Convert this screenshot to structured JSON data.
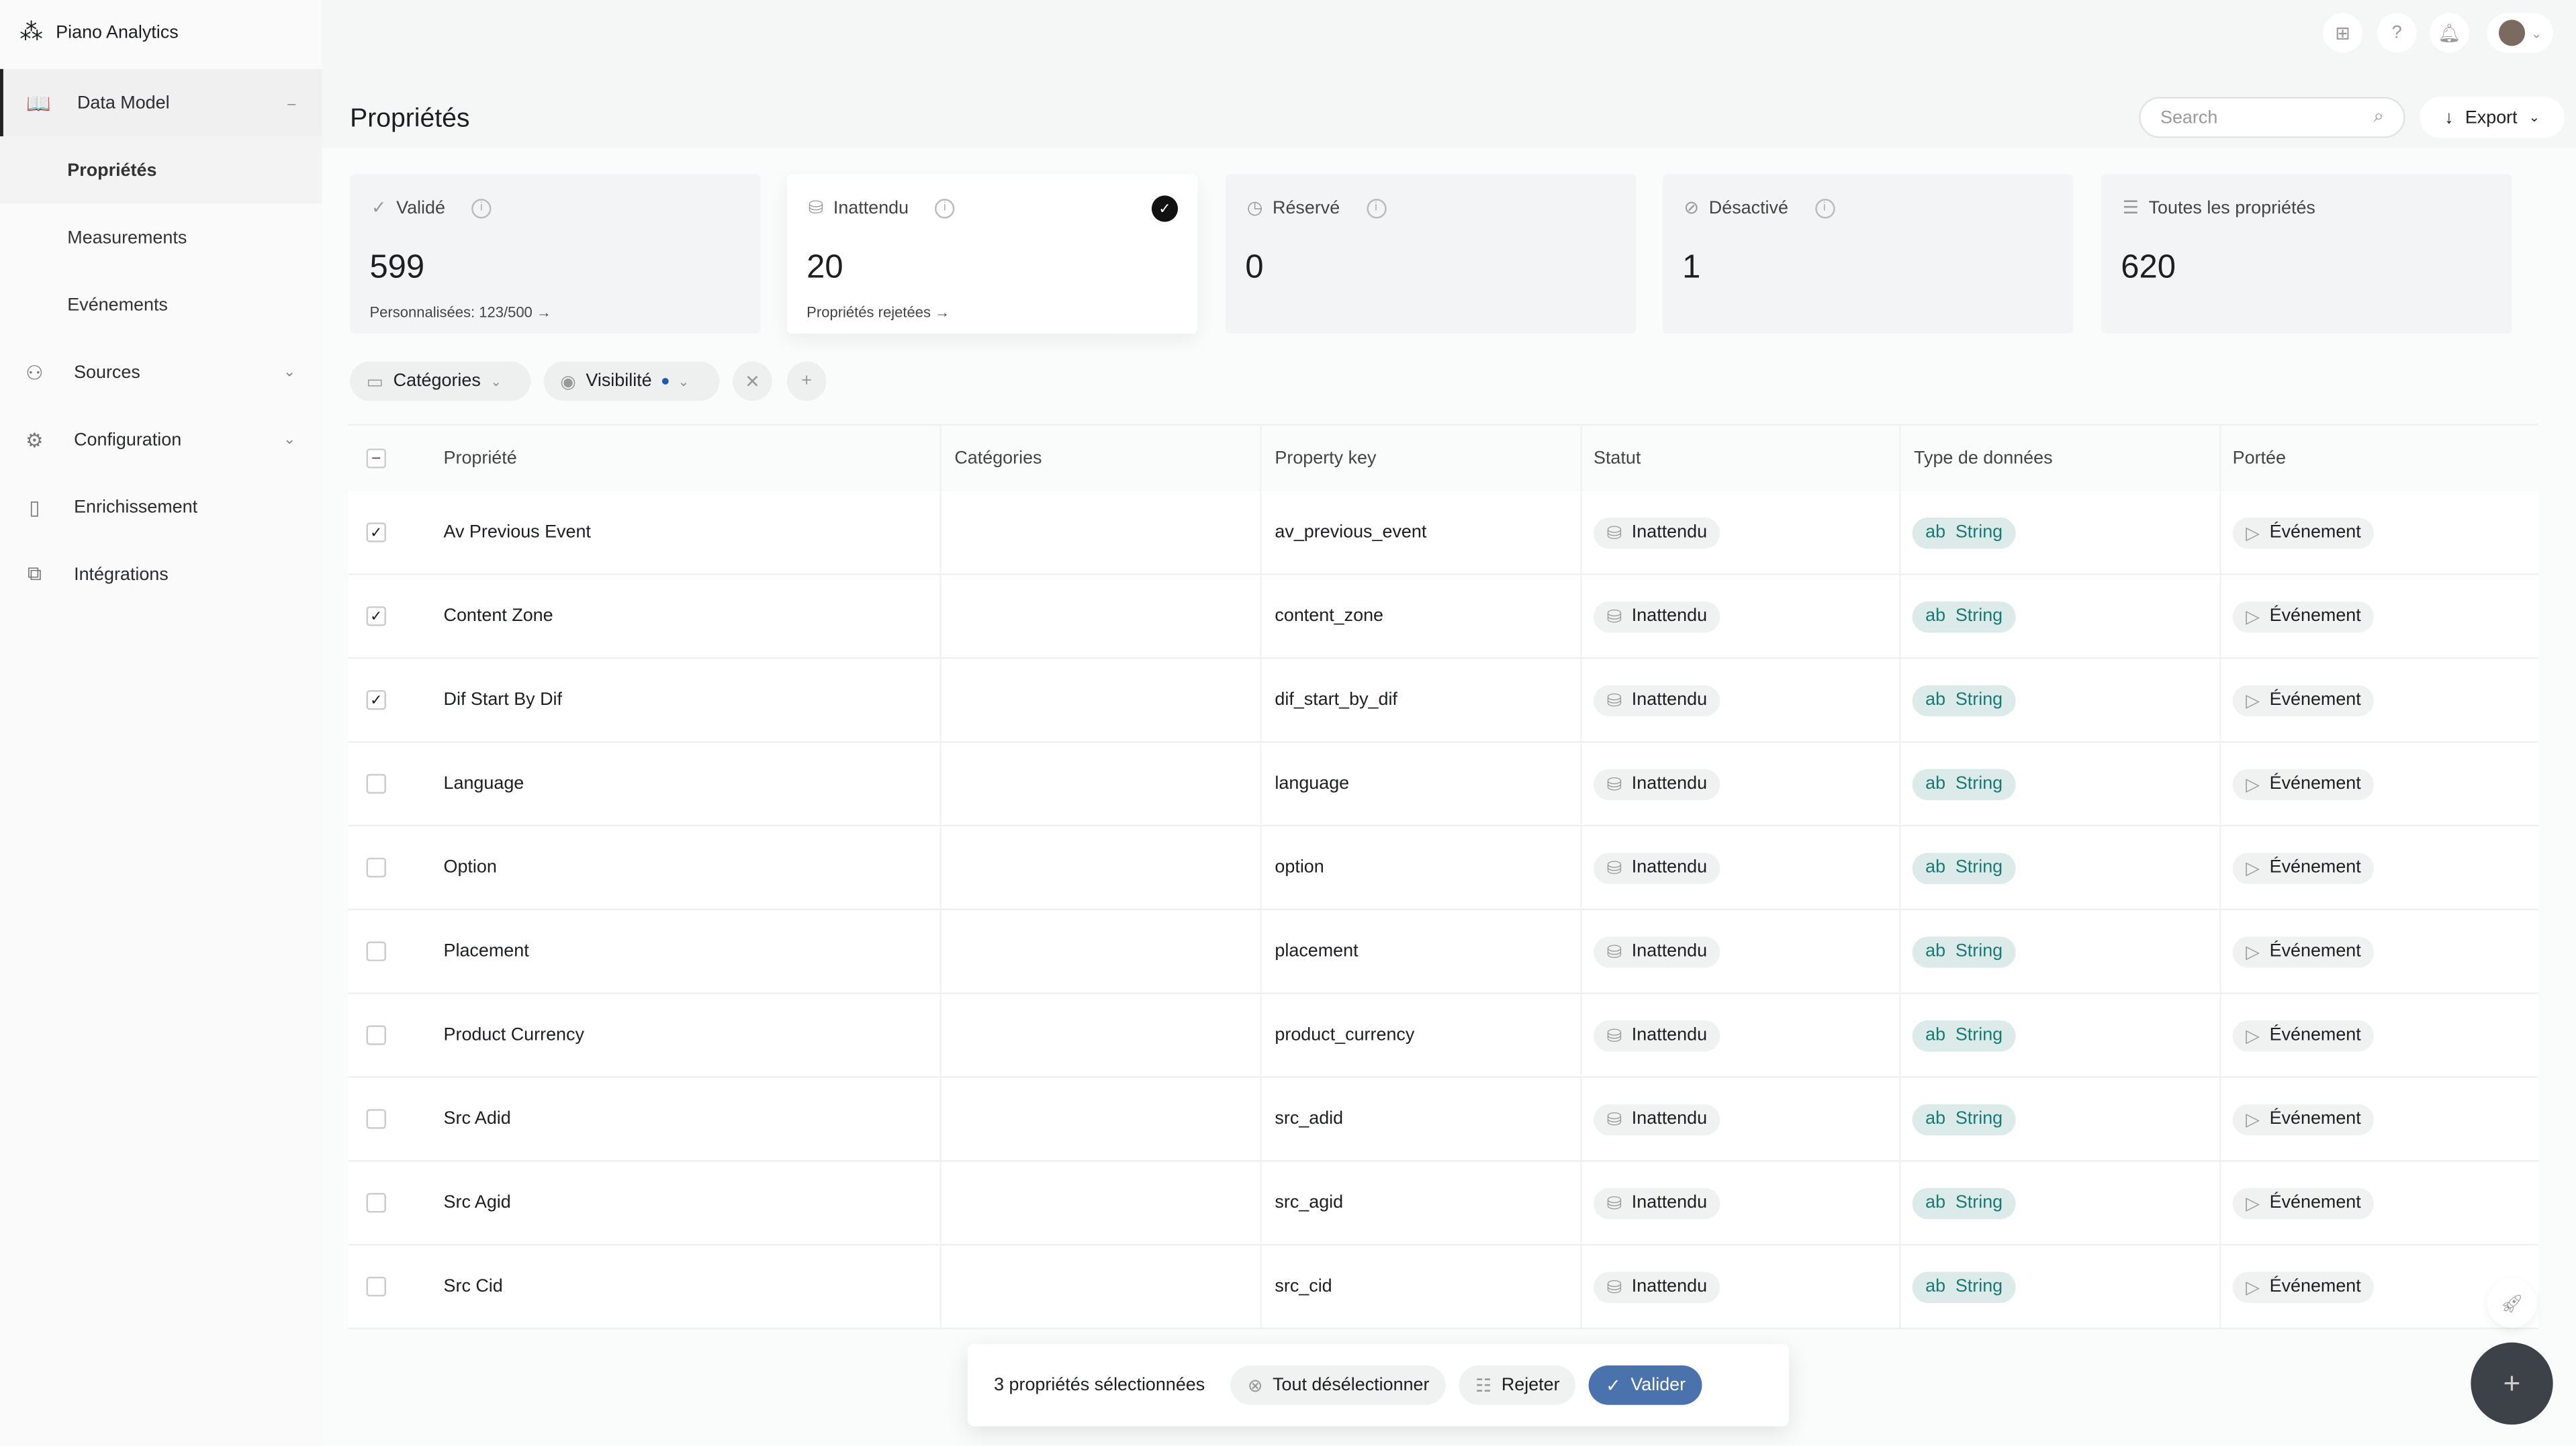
{
  "app": {
    "name": "Piano Analytics"
  },
  "sidebar": {
    "items": [
      {
        "label": "Data Model",
        "icon": "book-icon"
      },
      {
        "label": "Sources",
        "icon": "sources-icon"
      },
      {
        "label": "Configuration",
        "icon": "gear-icon"
      },
      {
        "label": "Enrichissement",
        "icon": "enrichment-icon"
      },
      {
        "label": "Intégrations",
        "icon": "integrations-icon"
      }
    ],
    "sub": [
      "Propriétés",
      "Measurements",
      "Evénements"
    ]
  },
  "header": {
    "title": "Propriétés",
    "search_placeholder": "Search",
    "export": "Export"
  },
  "cards": [
    {
      "label": "Validé",
      "value": "599",
      "foot": "Personnalisées: 123/500 →"
    },
    {
      "label": "Inattendu",
      "value": "20",
      "foot": "Propriétés rejetées →",
      "selected": true
    },
    {
      "label": "Réservé",
      "value": "0"
    },
    {
      "label": "Désactivé",
      "value": "1"
    },
    {
      "label": "Toutes les propriétés",
      "value": "620"
    }
  ],
  "filters": {
    "categories": "Catégories",
    "visibility": "Visibilité"
  },
  "table": {
    "columns": [
      "Propriété",
      "Catégories",
      "Property key",
      "Statut",
      "Type de données",
      "Portée"
    ],
    "rows": [
      {
        "name": "Av Previous Event",
        "key": "av_previous_event",
        "checked": true
      },
      {
        "name": "Content Zone",
        "key": "content_zone",
        "checked": true
      },
      {
        "name": "Dif Start By Dif",
        "key": "dif_start_by_dif",
        "checked": true
      },
      {
        "name": "Language",
        "key": "language",
        "checked": false
      },
      {
        "name": "Option",
        "key": "option",
        "checked": false
      },
      {
        "name": "Placement",
        "key": "placement",
        "checked": false
      },
      {
        "name": "Product Currency",
        "key": "product_currency",
        "checked": false
      },
      {
        "name": "Src Adid",
        "key": "src_adid",
        "checked": false
      },
      {
        "name": "Src Agid",
        "key": "src_agid",
        "checked": false
      },
      {
        "name": "Src Cid",
        "key": "src_cid",
        "checked": false
      }
    ],
    "status": "Inattendu",
    "type_prefix": "ab",
    "type": "String",
    "scope": "Événement"
  },
  "selection": {
    "count_label": "3 propriétés sélectionnées",
    "deselect": "Tout désélectionner",
    "reject": "Rejeter",
    "validate": "Valider"
  },
  "colors": {
    "accent": "#4a72ad",
    "string": "#197a74",
    "fab": "#3d4148"
  }
}
